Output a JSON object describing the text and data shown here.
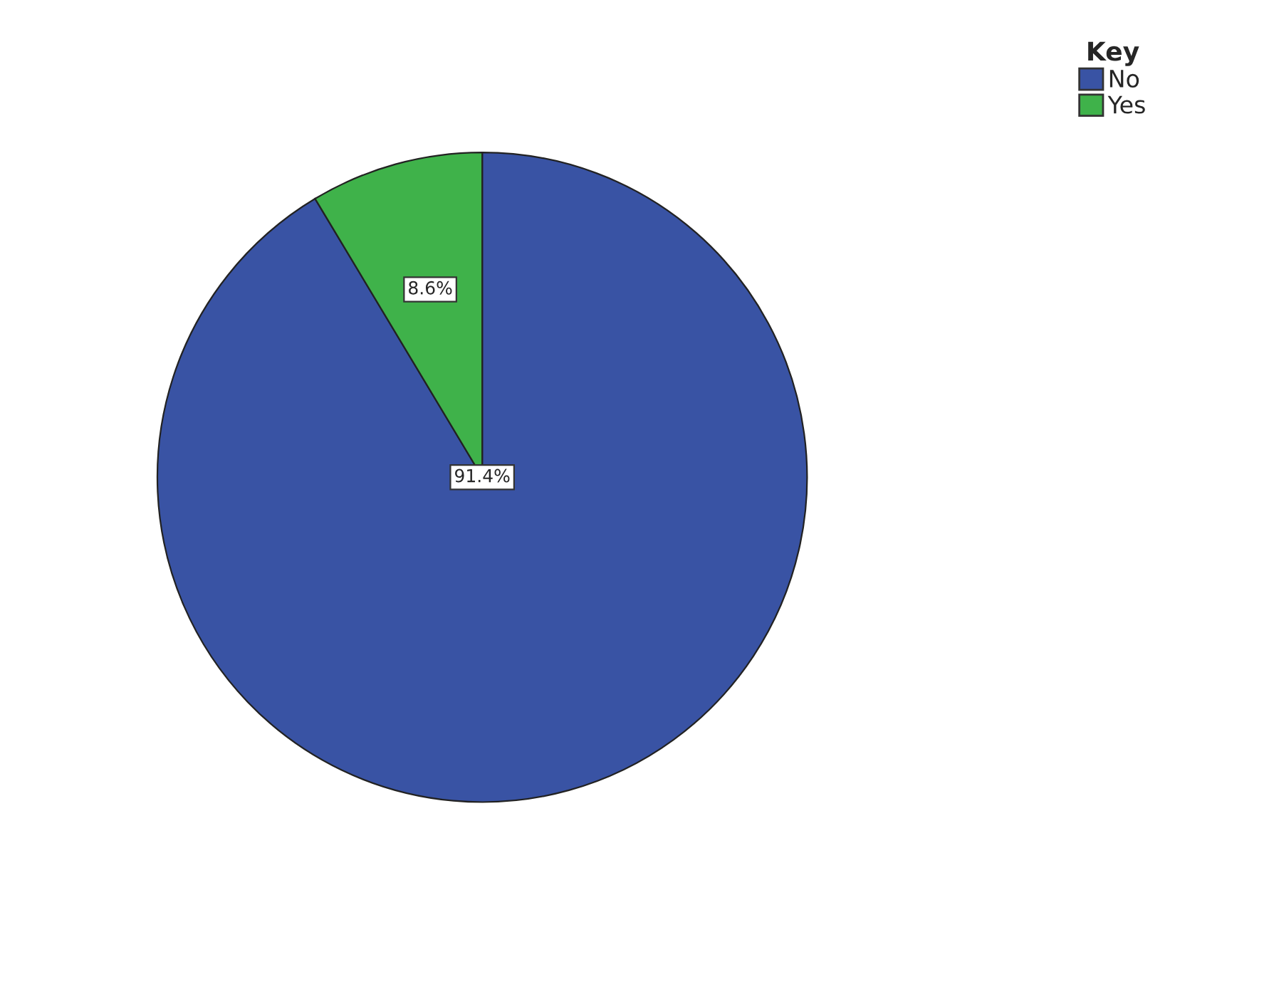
{
  "chart_data": {
    "type": "pie",
    "legend_title": "Key",
    "categories": [
      "No",
      "Yes"
    ],
    "values": [
      91.4,
      8.6
    ],
    "colors": [
      "#3953a4",
      "#3fb24a"
    ],
    "value_labels": [
      "91.4%",
      "8.6%"
    ],
    "legend": "top right"
  }
}
